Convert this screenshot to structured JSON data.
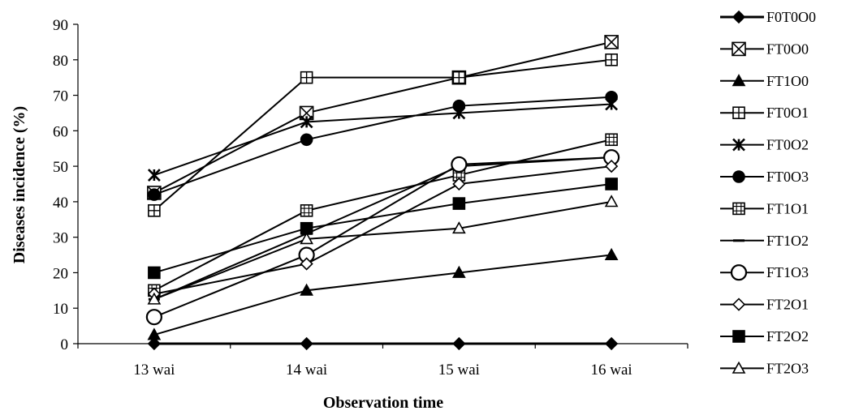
{
  "chart_data": {
    "type": "line",
    "title": "",
    "xlabel": "Observation time",
    "ylabel": "Diseases incidence (%)",
    "categories": [
      "13 wai",
      "14 wai",
      "15 wai",
      "16 wai"
    ],
    "ylim": [
      0,
      90
    ],
    "yticks": [
      0,
      10,
      20,
      30,
      40,
      50,
      60,
      70,
      80,
      90
    ],
    "grid": false,
    "legend_position": "right",
    "series": [
      {
        "name": "F0T0O0",
        "marker": "diamond-filled",
        "values": [
          0,
          0,
          0,
          0
        ]
      },
      {
        "name": "FT0O0",
        "marker": "square-x",
        "values": [
          42.5,
          65,
          75,
          85
        ]
      },
      {
        "name": "FT1O0",
        "marker": "triangle-filled",
        "values": [
          2.5,
          15,
          20,
          25
        ]
      },
      {
        "name": "FT0O1",
        "marker": "square-grid",
        "values": [
          37.5,
          75,
          75,
          80
        ]
      },
      {
        "name": "FT0O2",
        "marker": "star",
        "values": [
          47.5,
          62.5,
          65,
          67.5
        ]
      },
      {
        "name": "FT0O3",
        "marker": "circle-filled",
        "values": [
          42,
          57.5,
          67,
          69.5
        ]
      },
      {
        "name": "FT1O1",
        "marker": "square-lines",
        "values": [
          15,
          37.5,
          47.5,
          57.5
        ]
      },
      {
        "name": "FT1O2",
        "marker": "dash",
        "values": [
          12.5,
          31,
          50,
          52.5
        ]
      },
      {
        "name": "FT1O3",
        "marker": "circle-open",
        "values": [
          7.5,
          25,
          50.5,
          52.5
        ]
      },
      {
        "name": "FT2O1",
        "marker": "diamond-open",
        "values": [
          14,
          22.5,
          45,
          50
        ]
      },
      {
        "name": "FT2O2",
        "marker": "square-filled",
        "values": [
          20,
          32.5,
          39.5,
          45
        ]
      },
      {
        "name": "FT2O3",
        "marker": "triangle-open",
        "values": [
          12.5,
          29.5,
          32.5,
          40
        ]
      }
    ]
  }
}
